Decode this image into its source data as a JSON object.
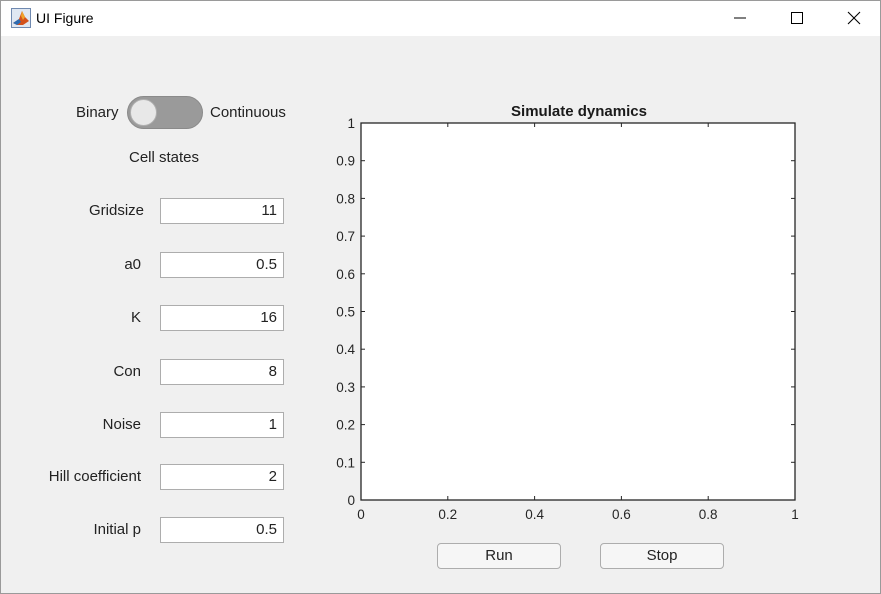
{
  "window": {
    "title": "UI Figure",
    "icon": "matlab-icon"
  },
  "toggle": {
    "left_label": "Binary",
    "right_label": "Continuous",
    "caption": "Cell states",
    "state": "Binary"
  },
  "params": [
    {
      "label": "Gridsize",
      "value": "11"
    },
    {
      "label": "a0",
      "value": "0.5"
    },
    {
      "label": "K",
      "value": "16"
    },
    {
      "label": "Con",
      "value": "8"
    },
    {
      "label": "Noise",
      "value": "1"
    },
    {
      "label": "Hill coefficient",
      "value": "2"
    },
    {
      "label": "Initial p",
      "value": "0.5"
    }
  ],
  "chart_data": {
    "type": "line",
    "title": "Simulate dynamics",
    "xlabel": "",
    "ylabel": "",
    "xlim": [
      0,
      1
    ],
    "ylim": [
      0,
      1
    ],
    "xticks": [
      "0",
      "0.2",
      "0.4",
      "0.6",
      "0.8",
      "1"
    ],
    "yticks": [
      "0",
      "0.1",
      "0.2",
      "0.3",
      "0.4",
      "0.5",
      "0.6",
      "0.7",
      "0.8",
      "0.9",
      "1"
    ],
    "grid": false,
    "series": []
  },
  "buttons": {
    "run": "Run",
    "stop": "Stop"
  }
}
